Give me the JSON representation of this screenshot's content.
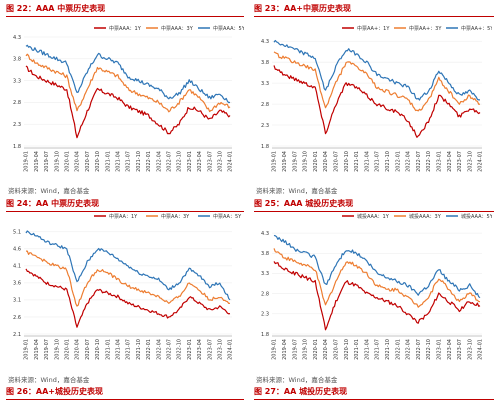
{
  "figures": {
    "fig22": {
      "title": "图 22：AAA 中票历史表现"
    },
    "fig23": {
      "title": "图 23：AA+中票历史表现"
    },
    "fig24": {
      "title": "图 24：AA 中票历史表现"
    },
    "fig25": {
      "title": "图 25：AAA 城投历史表现"
    },
    "fig26": {
      "title": "图 26：AA+城投历史表现"
    },
    "fig27": {
      "title": "图 27：AA 城投历史表现"
    }
  },
  "source_note": "资料来源：Wind，嘉合基金",
  "colors": {
    "s1": "#c00000",
    "s2": "#ed7d31",
    "s3": "#2e75b6",
    "title": "#c00000",
    "grid": "#e5e5e5"
  },
  "chart_data": [
    {
      "type": "line",
      "title": "",
      "x": [
        "2019-01",
        "2019-04",
        "2019-07",
        "2019-10",
        "2020-01",
        "2020-04",
        "2020-07",
        "2020-10",
        "2021-01",
        "2021-04",
        "2021-07",
        "2021-10",
        "2022-01",
        "2022-04",
        "2022-07",
        "2022-10",
        "2023-01",
        "2023-04",
        "2023-07",
        "2023-10",
        "2024-01"
      ],
      "yticks": [
        "1.8",
        "2.3",
        "2.8",
        "3.3",
        "3.8",
        "4.3"
      ],
      "ylim": [
        1.8,
        4.3
      ],
      "series": [
        {
          "name": "中票AAA：1Y",
          "values": [
            3.6,
            3.4,
            3.3,
            3.2,
            3.1,
            2.0,
            2.6,
            3.1,
            3.0,
            2.9,
            2.7,
            2.6,
            2.5,
            2.3,
            2.1,
            2.3,
            2.7,
            2.6,
            2.4,
            2.6,
            2.5
          ]
        },
        {
          "name": "中票AAA：3Y",
          "values": [
            3.9,
            3.7,
            3.6,
            3.5,
            3.4,
            2.6,
            3.1,
            3.6,
            3.5,
            3.4,
            3.1,
            3.0,
            2.9,
            2.8,
            2.6,
            2.8,
            3.1,
            2.9,
            2.6,
            2.8,
            2.7
          ]
        },
        {
          "name": "中票AAA：5Y",
          "values": [
            4.1,
            4.0,
            3.9,
            3.8,
            3.7,
            3.0,
            3.5,
            3.9,
            3.8,
            3.7,
            3.4,
            3.3,
            3.2,
            3.1,
            2.9,
            3.0,
            3.3,
            3.1,
            2.9,
            3.0,
            2.8
          ]
        }
      ],
      "legend": "top"
    },
    {
      "type": "line",
      "title": "",
      "x": [
        "2019-01",
        "2019-04",
        "2019-07",
        "2019-10",
        "2020-01",
        "2020-04",
        "2020-07",
        "2020-10",
        "2021-01",
        "2021-04",
        "2021-07",
        "2021-10",
        "2022-01",
        "2022-04",
        "2022-07",
        "2022-10",
        "2023-01",
        "2023-04",
        "2023-07",
        "2023-10",
        "2024-01"
      ],
      "yticks": [
        "1.8",
        "2.3",
        "2.8",
        "3.3",
        "3.8",
        "4.3"
      ],
      "ylim": [
        1.8,
        4.4
      ],
      "series": [
        {
          "name": "中票AA+：1Y",
          "values": [
            3.7,
            3.5,
            3.4,
            3.3,
            3.2,
            2.1,
            2.8,
            3.3,
            3.2,
            3.0,
            2.8,
            2.7,
            2.6,
            2.4,
            2.0,
            2.4,
            3.0,
            2.8,
            2.5,
            2.7,
            2.6
          ]
        },
        {
          "name": "中票AA+：3Y",
          "values": [
            4.0,
            3.9,
            3.8,
            3.7,
            3.6,
            2.7,
            3.3,
            3.8,
            3.7,
            3.5,
            3.2,
            3.1,
            3.0,
            2.9,
            2.6,
            2.9,
            3.4,
            3.1,
            2.8,
            3.0,
            2.8
          ]
        },
        {
          "name": "中票AA+：5Y",
          "values": [
            4.3,
            4.2,
            4.1,
            4.0,
            3.9,
            3.1,
            3.7,
            4.1,
            4.0,
            3.8,
            3.5,
            3.4,
            3.3,
            3.2,
            2.9,
            3.1,
            3.6,
            3.3,
            3.0,
            3.1,
            2.9
          ]
        }
      ],
      "legend": "top"
    },
    {
      "type": "line",
      "title": "",
      "x": [
        "2019-01",
        "2019-04",
        "2019-07",
        "2019-10",
        "2020-01",
        "2020-04",
        "2020-07",
        "2020-10",
        "2021-01",
        "2021-04",
        "2021-07",
        "2021-10",
        "2022-01",
        "2022-04",
        "2022-07",
        "2022-10",
        "2023-01",
        "2023-04",
        "2023-07",
        "2023-10",
        "2024-01"
      ],
      "yticks": [
        "2.1",
        "2.6",
        "3.1",
        "3.6",
        "4.1",
        "4.6",
        "5.1"
      ],
      "ylim": [
        2.1,
        5.3
      ],
      "series": [
        {
          "name": "中票AA：1Y",
          "values": [
            4.0,
            3.8,
            3.6,
            3.5,
            3.4,
            2.3,
            3.0,
            3.4,
            3.3,
            3.2,
            3.0,
            2.9,
            2.8,
            2.7,
            2.6,
            2.8,
            3.2,
            3.0,
            2.8,
            2.9,
            2.7
          ]
        },
        {
          "name": "中票AA：3Y",
          "values": [
            4.5,
            4.4,
            4.2,
            4.1,
            4.0,
            2.9,
            3.6,
            4.0,
            3.9,
            3.7,
            3.5,
            3.4,
            3.3,
            3.2,
            3.0,
            3.2,
            3.6,
            3.4,
            3.1,
            3.2,
            3.0
          ]
        },
        {
          "name": "中票AA：5Y",
          "values": [
            5.1,
            5.0,
            4.8,
            4.7,
            4.6,
            3.6,
            4.2,
            4.6,
            4.5,
            4.3,
            4.1,
            3.9,
            3.8,
            3.7,
            3.4,
            3.6,
            4.0,
            3.8,
            3.5,
            3.6,
            3.1
          ]
        }
      ],
      "legend": "top"
    },
    {
      "type": "line",
      "title": "",
      "x": [
        "2019-01",
        "2019-04",
        "2019-07",
        "2019-10",
        "2020-01",
        "2020-04",
        "2020-07",
        "2020-10",
        "2021-01",
        "2021-04",
        "2021-07",
        "2021-10",
        "2022-01",
        "2022-04",
        "2022-07",
        "2022-10",
        "2023-01",
        "2023-04",
        "2023-07",
        "2023-10",
        "2024-01"
      ],
      "yticks": [
        "1.8",
        "2.3",
        "2.8",
        "3.3",
        "3.8",
        "4.3"
      ],
      "ylim": [
        1.8,
        4.5
      ],
      "series": [
        {
          "name": "城投AAA：1Y",
          "values": [
            3.6,
            3.4,
            3.3,
            3.2,
            3.1,
            1.9,
            2.6,
            3.1,
            3.0,
            2.8,
            2.7,
            2.6,
            2.5,
            2.3,
            2.1,
            2.3,
            2.8,
            2.6,
            2.4,
            2.6,
            2.5
          ]
        },
        {
          "name": "城投AAA：3Y",
          "values": [
            3.9,
            3.7,
            3.6,
            3.5,
            3.4,
            2.5,
            3.1,
            3.6,
            3.5,
            3.3,
            3.0,
            2.9,
            2.9,
            2.7,
            2.5,
            2.7,
            3.2,
            2.9,
            2.6,
            2.8,
            2.6
          ]
        },
        {
          "name": "城投AAA：5Y",
          "values": [
            4.2,
            4.1,
            3.9,
            3.8,
            3.7,
            3.0,
            3.5,
            3.9,
            3.8,
            3.6,
            3.3,
            3.2,
            3.1,
            3.0,
            2.8,
            3.0,
            3.4,
            3.1,
            2.9,
            3.0,
            2.7
          ]
        }
      ],
      "legend": "top"
    }
  ]
}
